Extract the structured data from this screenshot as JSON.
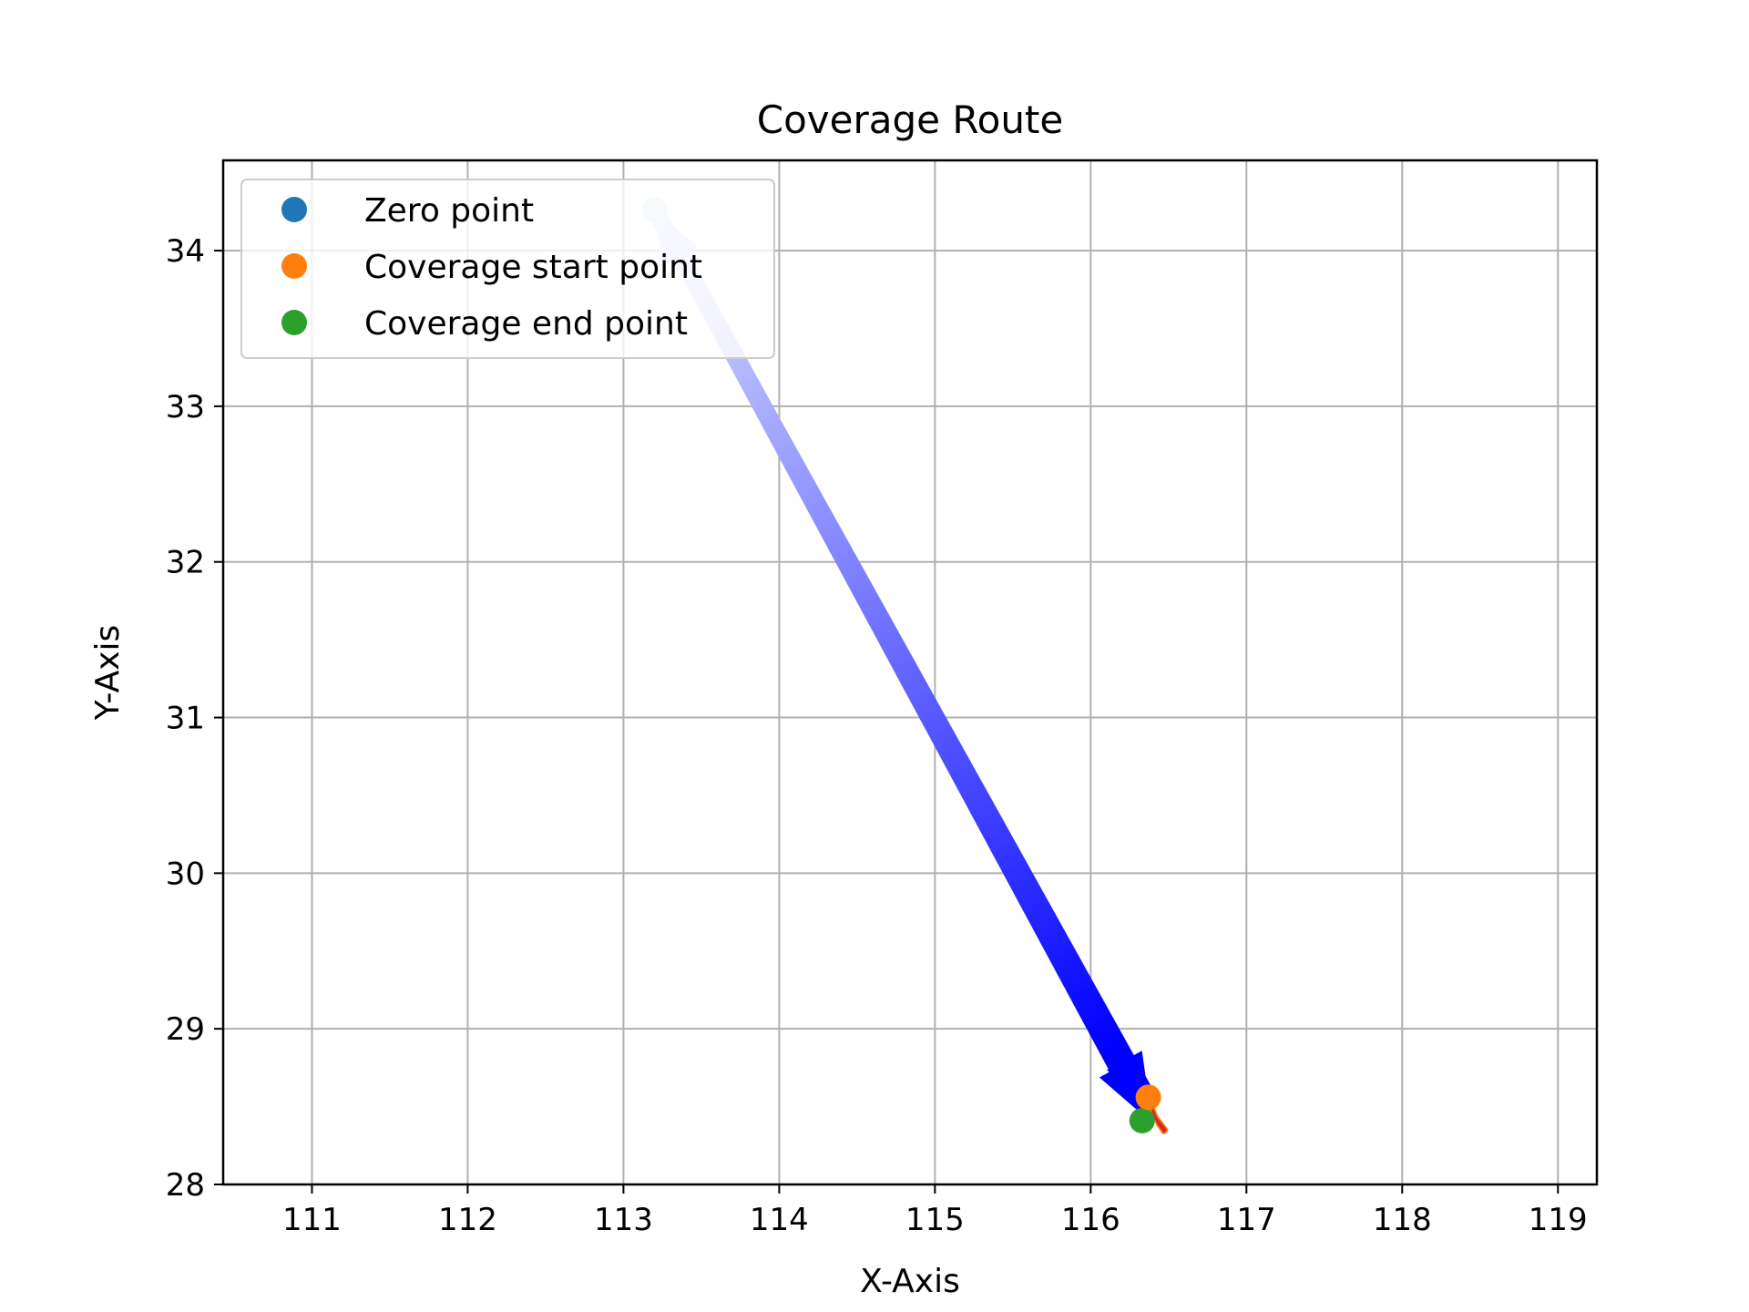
{
  "chart_data": {
    "type": "line",
    "title": "Coverage Route",
    "xlabel": "X-Axis",
    "ylabel": "Y-Axis",
    "xlim": [
      110.43,
      119.25
    ],
    "ylim": [
      28,
      34.58
    ],
    "xticks": [
      111,
      112,
      113,
      114,
      115,
      116,
      117,
      118,
      119
    ],
    "yticks": [
      28,
      29,
      30,
      31,
      32,
      33,
      34
    ],
    "grid": true,
    "legend_position": "upper-left",
    "colors": {
      "zero_point": "#1f77b4",
      "start_point": "#ff7f0e",
      "end_point": "#2ca02c",
      "route_arrow": "#0000ff",
      "local_route": "#ff7f0e",
      "local_route_inner": "#d62728"
    },
    "legend": [
      {
        "label": "Zero point",
        "color": "#1f77b4"
      },
      {
        "label": "Coverage start point",
        "color": "#ff7f0e"
      },
      {
        "label": "Coverage end point",
        "color": "#2ca02c"
      }
    ],
    "points": {
      "zero_point": {
        "x": 113.2,
        "y": 34.26
      },
      "start_point": {
        "x": 116.37,
        "y": 28.56
      },
      "end_point": {
        "x": 116.33,
        "y": 28.41
      }
    },
    "arrows": [
      {
        "from": [
          116.39,
          28.52
        ],
        "to": [
          113.2,
          34.26
        ]
      },
      {
        "from": [
          113.24,
          34.2
        ],
        "to": [
          116.38,
          28.5
        ]
      },
      {
        "from": [
          113.22,
          34.23
        ],
        "to": [
          116.33,
          28.45
        ]
      }
    ],
    "local_route": [
      [
        116.37,
        28.56
      ],
      [
        116.42,
        28.42
      ],
      [
        116.46,
        28.36
      ],
      [
        116.47,
        28.34
      ],
      [
        116.43,
        28.4
      ],
      [
        116.4,
        28.47
      ],
      [
        116.38,
        28.52
      ],
      [
        116.44,
        28.38
      ],
      [
        116.48,
        28.35
      ],
      [
        116.41,
        28.44
      ]
    ]
  }
}
